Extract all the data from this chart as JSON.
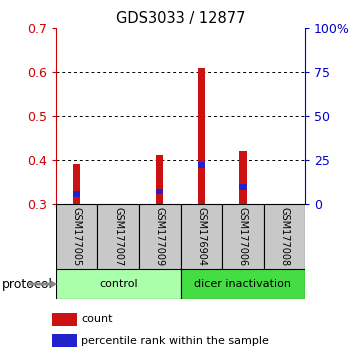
{
  "title": "GDS3033 / 12877",
  "samples": [
    "GSM177005",
    "GSM177007",
    "GSM177009",
    "GSM176904",
    "GSM177006",
    "GSM177008"
  ],
  "red_values": [
    0.39,
    0.3,
    0.41,
    0.61,
    0.42,
    0.3
  ],
  "blue_values": [
    0.322,
    0.3,
    0.328,
    0.388,
    0.338,
    0.3
  ],
  "ymin": 0.3,
  "ymax": 0.7,
  "yticks_left": [
    0.3,
    0.4,
    0.5,
    0.6,
    0.7
  ],
  "yticks_right_vals": [
    0,
    25,
    50,
    75,
    100
  ],
  "yticks_right_labels": [
    "0",
    "25",
    "50",
    "75",
    "100%"
  ],
  "groups": [
    {
      "label": "control",
      "start": 0,
      "end": 3,
      "color": "#aaffaa"
    },
    {
      "label": "dicer inactivation",
      "start": 3,
      "end": 6,
      "color": "#44dd44"
    }
  ],
  "left_axis_color": "#cc0000",
  "right_axis_color": "#0000cc",
  "bar_color_red": "#cc1111",
  "bar_color_blue": "#2222cc",
  "sample_box_color": "#c8c8c8",
  "background_color": "#ffffff",
  "legend_red": "count",
  "legend_blue": "percentile rank within the sample",
  "protocol_label": "protocol",
  "bar_width": 0.18
}
